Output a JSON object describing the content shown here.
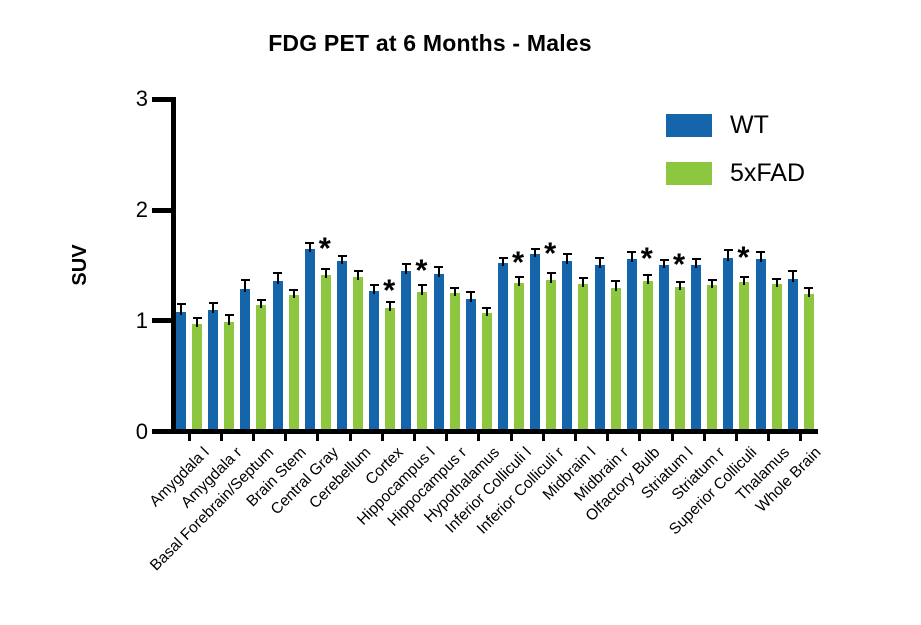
{
  "title": "FDG PET at 6 Months - Males",
  "y_axis": {
    "label": "SUV",
    "ticks": [
      "0",
      "1",
      "2",
      "3"
    ],
    "min": 0,
    "max": 3
  },
  "legend": {
    "items": [
      {
        "label": "WT",
        "color": "#1565ab"
      },
      {
        "label": "5xFAD",
        "color": "#8dc63f"
      }
    ]
  },
  "chart_data": {
    "type": "bar",
    "title": "FDG PET at 6 Months - Males",
    "xlabel": "",
    "ylabel": "SUV",
    "ylim": [
      0,
      3
    ],
    "grid": false,
    "legend_position": "top-right",
    "categories": [
      "Amygdala l",
      "Amygdala r",
      "Basal Forebrain/Septum",
      "Brain Stem",
      "Central Gray",
      "Cerebellum",
      "Cortex",
      "Hippocampus l",
      "Hippocampus r",
      "Hypothalamus",
      "Inferior Colliculi l",
      "Inferior Colliculi r",
      "Midbrain l",
      "Midbrain r",
      "Olfactory Bulb",
      "Striatum l",
      "Striatum r",
      "Superior Colliculi",
      "Thalamus",
      "Whole Brain"
    ],
    "series": [
      {
        "name": "WT",
        "color": "#1565ab",
        "values": [
          1.08,
          1.1,
          1.29,
          1.36,
          1.65,
          1.54,
          1.27,
          1.45,
          1.42,
          1.2,
          1.52,
          1.6,
          1.54,
          1.5,
          1.56,
          1.5,
          1.5,
          1.57,
          1.56,
          1.38
        ],
        "errors": [
          0.07,
          0.06,
          0.08,
          0.07,
          0.05,
          0.05,
          0.05,
          0.06,
          0.07,
          0.06,
          0.05,
          0.05,
          0.06,
          0.07,
          0.06,
          0.05,
          0.06,
          0.07,
          0.06,
          0.07
        ]
      },
      {
        "name": "5xFAD",
        "color": "#8dc63f",
        "values": [
          0.97,
          0.99,
          1.14,
          1.23,
          1.41,
          1.4,
          1.12,
          1.26,
          1.25,
          1.07,
          1.34,
          1.37,
          1.33,
          1.3,
          1.36,
          1.31,
          1.32,
          1.35,
          1.33,
          1.24
        ],
        "errors": [
          0.06,
          0.06,
          0.05,
          0.05,
          0.06,
          0.05,
          0.05,
          0.06,
          0.05,
          0.05,
          0.06,
          0.06,
          0.06,
          0.06,
          0.05,
          0.04,
          0.05,
          0.05,
          0.05,
          0.06
        ]
      }
    ],
    "significance_marker": "*",
    "significant_categories": [
      "Central Gray",
      "Cortex",
      "Hippocampus l",
      "Inferior Colliculi l",
      "Inferior Colliculi r",
      "Olfactory Bulb",
      "Striatum l",
      "Superior Colliculi"
    ]
  }
}
